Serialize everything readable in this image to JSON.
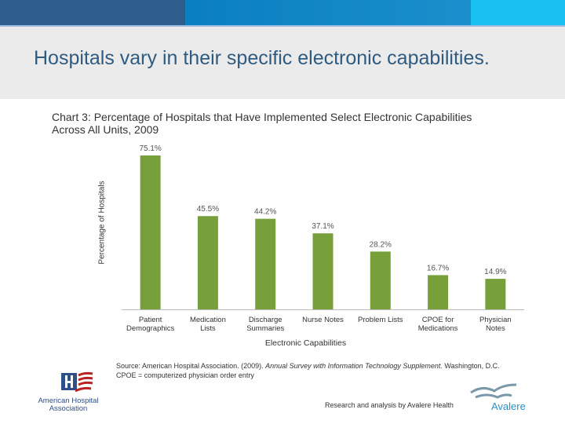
{
  "slide": {
    "title": "Hospitals vary in their specific electronic capabilities."
  },
  "chart_data": {
    "type": "bar",
    "title": "Chart 3: Percentage of Hospitals that Have Implemented Select Electronic Capabilities Across All Units, 2009",
    "xlabel": "Electronic Capabilities",
    "ylabel": "Percentage of Hospitals",
    "categories": [
      [
        "Patient",
        "Demographics"
      ],
      [
        "Medication",
        "Lists"
      ],
      [
        "Discharge",
        "Summaries"
      ],
      [
        "Nurse Notes"
      ],
      [
        "Problem Lists"
      ],
      [
        "CPOE for",
        "Medications"
      ],
      [
        "Physician",
        "Notes"
      ]
    ],
    "values": [
      75.1,
      45.5,
      44.2,
      37.1,
      28.2,
      16.7,
      14.9
    ],
    "data_labels": [
      "75.1%",
      "45.5%",
      "44.2%",
      "37.1%",
      "28.2%",
      "16.7%",
      "14.9%"
    ],
    "ylim": [
      0,
      80
    ],
    "bar_color": "#77a03a"
  },
  "footer": {
    "source_prefix": "Source: American Hospital Association. (2009). ",
    "source_italic": "Annual Survey with Information Technology Supplement.",
    "source_suffix": " Washington, D.C.",
    "cpoe_note": "CPOE = computerized physician order entry",
    "credit": "Research and analysis by Avalere Health",
    "aha_logo": "American Hospital Association",
    "avalere_logo": "Avalere"
  }
}
